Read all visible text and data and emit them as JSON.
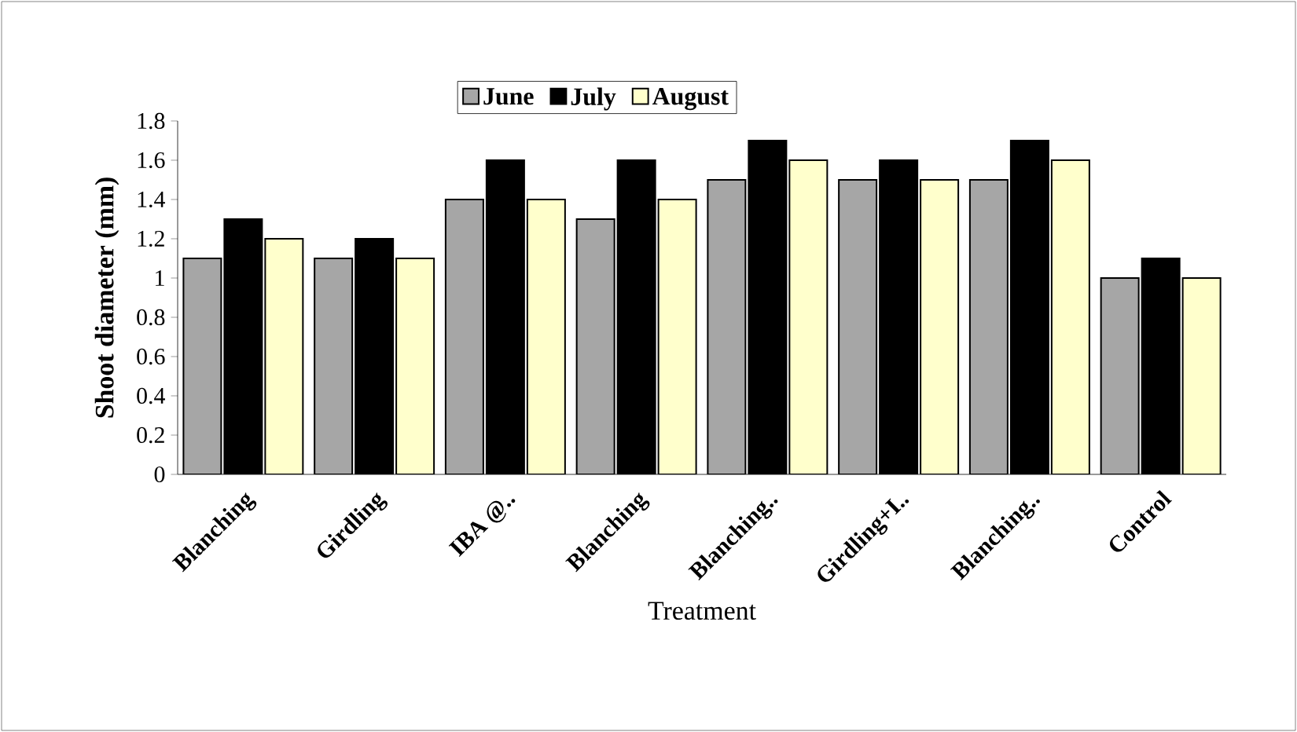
{
  "chart_data": {
    "type": "bar",
    "xlabel": "Treatment",
    "ylabel": "Shoot diameter (mm)",
    "categories": [
      "Blanching",
      "Girdling",
      "IBA @..",
      "Blanching",
      "Blanching..",
      "Girdling+I..",
      "Blanching..",
      "Control"
    ],
    "series": [
      {
        "name": "June",
        "color": "#a6a6a6",
        "values": [
          1.1,
          1.1,
          1.4,
          1.3,
          1.5,
          1.5,
          1.5,
          1.0
        ]
      },
      {
        "name": "July",
        "color": "#000000",
        "values": [
          1.3,
          1.2,
          1.6,
          1.6,
          1.7,
          1.6,
          1.7,
          1.1
        ]
      },
      {
        "name": "August",
        "color": "#ffffcc",
        "values": [
          1.2,
          1.1,
          1.4,
          1.4,
          1.6,
          1.5,
          1.6,
          1.0
        ]
      }
    ],
    "ylim": [
      0,
      1.8
    ],
    "yticks": [
      0,
      0.2,
      0.4,
      0.6,
      0.8,
      1,
      1.2,
      1.4,
      1.6,
      1.8
    ],
    "grid": false,
    "legend": "top"
  }
}
